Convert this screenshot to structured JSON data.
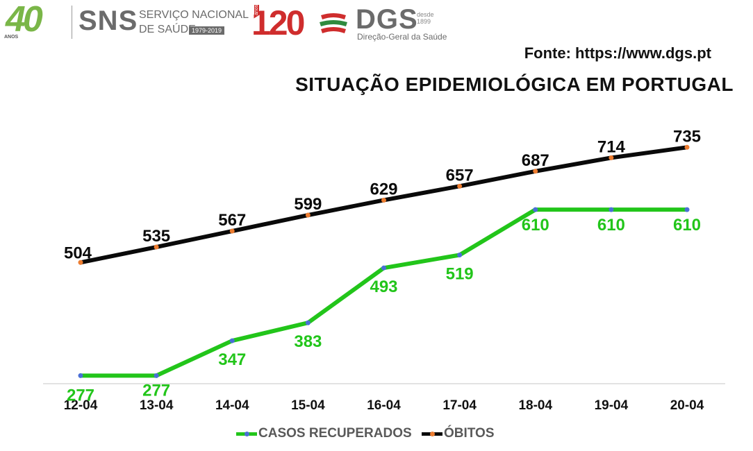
{
  "header": {
    "sns_logo_number": "40",
    "sns_logo_caption": "ANOS",
    "sns_name": "SNS",
    "sns_line1": "SERVIÇO NACIONAL",
    "sns_line2": "DE SAÚDE",
    "sns_years": "1979-2019",
    "dgs_anniversary_number": "120",
    "dgs_anniversary_caption": "anos",
    "dgs_name": "DGS",
    "dgs_desde": "desde",
    "dgs_year": "1899",
    "dgs_full_name": "Direção-Geral da Saúde",
    "source": "Fonte: https://www.dgs.pt",
    "title": "SITUAÇÃO EPIDEMIOLÓGICA EM PORTUGAL"
  },
  "colors": {
    "recovered": "#22c51a",
    "deaths": "#0a0a0a",
    "recovered_marker": "#4a6fd6",
    "deaths_marker": "#ed7d31",
    "axis": "#d9d9d9",
    "legend_text": "#595959"
  },
  "chart_data": {
    "type": "line",
    "title": "SITUAÇÃO EPIDEMIOLÓGICA EM PORTUGAL",
    "categories": [
      "12-04",
      "13-04",
      "14-04",
      "15-04",
      "16-04",
      "17-04",
      "18-04",
      "19-04",
      "20-04"
    ],
    "series": [
      {
        "name": "CASOS RECUPERADOS",
        "values": [
          277,
          277,
          347,
          383,
          493,
          519,
          610,
          610,
          610
        ]
      },
      {
        "name": "ÓBITOS",
        "values": [
          504,
          535,
          567,
          599,
          629,
          657,
          687,
          714,
          735
        ]
      }
    ],
    "xlabel": "",
    "ylabel": "",
    "ylim": [
      0,
      800
    ],
    "grid": false,
    "legend": "bottom"
  },
  "legend": {
    "recovered_label": "CASOS RECUPERADOS",
    "deaths_label": "ÓBITOS"
  }
}
